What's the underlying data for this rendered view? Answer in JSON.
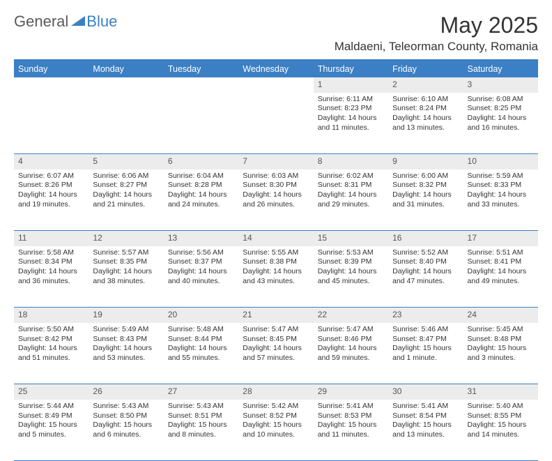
{
  "brand": {
    "part1": "General",
    "part2": "Blue"
  },
  "title": "May 2025",
  "location": "Maldaeni, Teleorman County, Romania",
  "day_headers": [
    "Sunday",
    "Monday",
    "Tuesday",
    "Wednesday",
    "Thursday",
    "Friday",
    "Saturday"
  ],
  "colors": {
    "accent": "#3b7fc4",
    "header_text": "#ffffff",
    "daynum_bg": "#ececec",
    "body_text": "#333333",
    "logo_gray": "#5a5a5a"
  },
  "fonts": {
    "month_title_size": 32,
    "location_size": 17,
    "header_size": 12.5,
    "cell_size": 10.5,
    "daynum_size": 12
  },
  "weeks": [
    [
      null,
      null,
      null,
      null,
      {
        "n": "1",
        "sr": "Sunrise: 6:11 AM",
        "ss": "Sunset: 8:23 PM",
        "d1": "Daylight: 14 hours",
        "d2": "and 11 minutes."
      },
      {
        "n": "2",
        "sr": "Sunrise: 6:10 AM",
        "ss": "Sunset: 8:24 PM",
        "d1": "Daylight: 14 hours",
        "d2": "and 13 minutes."
      },
      {
        "n": "3",
        "sr": "Sunrise: 6:08 AM",
        "ss": "Sunset: 8:25 PM",
        "d1": "Daylight: 14 hours",
        "d2": "and 16 minutes."
      }
    ],
    [
      {
        "n": "4",
        "sr": "Sunrise: 6:07 AM",
        "ss": "Sunset: 8:26 PM",
        "d1": "Daylight: 14 hours",
        "d2": "and 19 minutes."
      },
      {
        "n": "5",
        "sr": "Sunrise: 6:06 AM",
        "ss": "Sunset: 8:27 PM",
        "d1": "Daylight: 14 hours",
        "d2": "and 21 minutes."
      },
      {
        "n": "6",
        "sr": "Sunrise: 6:04 AM",
        "ss": "Sunset: 8:28 PM",
        "d1": "Daylight: 14 hours",
        "d2": "and 24 minutes."
      },
      {
        "n": "7",
        "sr": "Sunrise: 6:03 AM",
        "ss": "Sunset: 8:30 PM",
        "d1": "Daylight: 14 hours",
        "d2": "and 26 minutes."
      },
      {
        "n": "8",
        "sr": "Sunrise: 6:02 AM",
        "ss": "Sunset: 8:31 PM",
        "d1": "Daylight: 14 hours",
        "d2": "and 29 minutes."
      },
      {
        "n": "9",
        "sr": "Sunrise: 6:00 AM",
        "ss": "Sunset: 8:32 PM",
        "d1": "Daylight: 14 hours",
        "d2": "and 31 minutes."
      },
      {
        "n": "10",
        "sr": "Sunrise: 5:59 AM",
        "ss": "Sunset: 8:33 PM",
        "d1": "Daylight: 14 hours",
        "d2": "and 33 minutes."
      }
    ],
    [
      {
        "n": "11",
        "sr": "Sunrise: 5:58 AM",
        "ss": "Sunset: 8:34 PM",
        "d1": "Daylight: 14 hours",
        "d2": "and 36 minutes."
      },
      {
        "n": "12",
        "sr": "Sunrise: 5:57 AM",
        "ss": "Sunset: 8:35 PM",
        "d1": "Daylight: 14 hours",
        "d2": "and 38 minutes."
      },
      {
        "n": "13",
        "sr": "Sunrise: 5:56 AM",
        "ss": "Sunset: 8:37 PM",
        "d1": "Daylight: 14 hours",
        "d2": "and 40 minutes."
      },
      {
        "n": "14",
        "sr": "Sunrise: 5:55 AM",
        "ss": "Sunset: 8:38 PM",
        "d1": "Daylight: 14 hours",
        "d2": "and 43 minutes."
      },
      {
        "n": "15",
        "sr": "Sunrise: 5:53 AM",
        "ss": "Sunset: 8:39 PM",
        "d1": "Daylight: 14 hours",
        "d2": "and 45 minutes."
      },
      {
        "n": "16",
        "sr": "Sunrise: 5:52 AM",
        "ss": "Sunset: 8:40 PM",
        "d1": "Daylight: 14 hours",
        "d2": "and 47 minutes."
      },
      {
        "n": "17",
        "sr": "Sunrise: 5:51 AM",
        "ss": "Sunset: 8:41 PM",
        "d1": "Daylight: 14 hours",
        "d2": "and 49 minutes."
      }
    ],
    [
      {
        "n": "18",
        "sr": "Sunrise: 5:50 AM",
        "ss": "Sunset: 8:42 PM",
        "d1": "Daylight: 14 hours",
        "d2": "and 51 minutes."
      },
      {
        "n": "19",
        "sr": "Sunrise: 5:49 AM",
        "ss": "Sunset: 8:43 PM",
        "d1": "Daylight: 14 hours",
        "d2": "and 53 minutes."
      },
      {
        "n": "20",
        "sr": "Sunrise: 5:48 AM",
        "ss": "Sunset: 8:44 PM",
        "d1": "Daylight: 14 hours",
        "d2": "and 55 minutes."
      },
      {
        "n": "21",
        "sr": "Sunrise: 5:47 AM",
        "ss": "Sunset: 8:45 PM",
        "d1": "Daylight: 14 hours",
        "d2": "and 57 minutes."
      },
      {
        "n": "22",
        "sr": "Sunrise: 5:47 AM",
        "ss": "Sunset: 8:46 PM",
        "d1": "Daylight: 14 hours",
        "d2": "and 59 minutes."
      },
      {
        "n": "23",
        "sr": "Sunrise: 5:46 AM",
        "ss": "Sunset: 8:47 PM",
        "d1": "Daylight: 15 hours",
        "d2": "and 1 minute."
      },
      {
        "n": "24",
        "sr": "Sunrise: 5:45 AM",
        "ss": "Sunset: 8:48 PM",
        "d1": "Daylight: 15 hours",
        "d2": "and 3 minutes."
      }
    ],
    [
      {
        "n": "25",
        "sr": "Sunrise: 5:44 AM",
        "ss": "Sunset: 8:49 PM",
        "d1": "Daylight: 15 hours",
        "d2": "and 5 minutes."
      },
      {
        "n": "26",
        "sr": "Sunrise: 5:43 AM",
        "ss": "Sunset: 8:50 PM",
        "d1": "Daylight: 15 hours",
        "d2": "and 6 minutes."
      },
      {
        "n": "27",
        "sr": "Sunrise: 5:43 AM",
        "ss": "Sunset: 8:51 PM",
        "d1": "Daylight: 15 hours",
        "d2": "and 8 minutes."
      },
      {
        "n": "28",
        "sr": "Sunrise: 5:42 AM",
        "ss": "Sunset: 8:52 PM",
        "d1": "Daylight: 15 hours",
        "d2": "and 10 minutes."
      },
      {
        "n": "29",
        "sr": "Sunrise: 5:41 AM",
        "ss": "Sunset: 8:53 PM",
        "d1": "Daylight: 15 hours",
        "d2": "and 11 minutes."
      },
      {
        "n": "30",
        "sr": "Sunrise: 5:41 AM",
        "ss": "Sunset: 8:54 PM",
        "d1": "Daylight: 15 hours",
        "d2": "and 13 minutes."
      },
      {
        "n": "31",
        "sr": "Sunrise: 5:40 AM",
        "ss": "Sunset: 8:55 PM",
        "d1": "Daylight: 15 hours",
        "d2": "and 14 minutes."
      }
    ]
  ]
}
